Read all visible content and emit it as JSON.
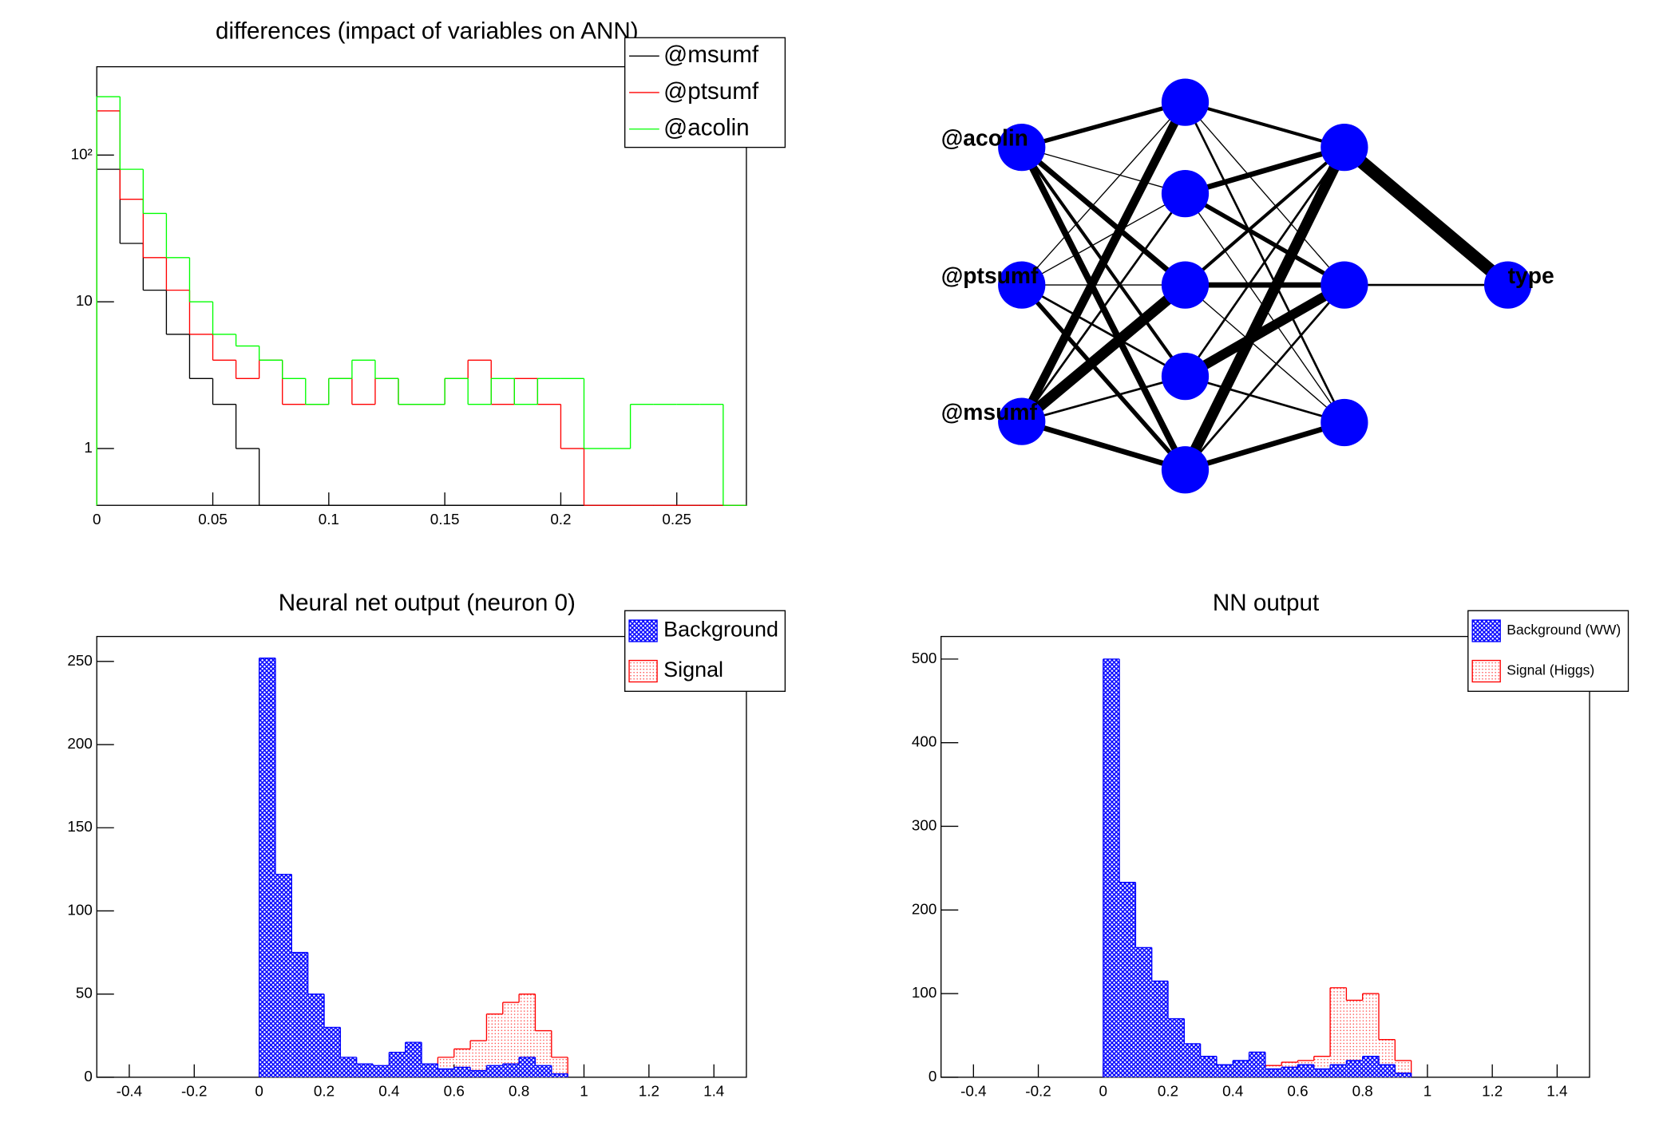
{
  "chart_data": [
    {
      "type": "histogram",
      "title": "differences (impact of variables on ANN)",
      "bins": [
        0,
        0.01,
        0.02,
        0.03,
        0.04,
        0.05,
        0.06,
        0.07,
        0.08,
        0.09,
        0.1,
        0.11,
        0.12,
        0.13,
        0.14,
        0.15,
        0.16,
        0.17,
        0.18,
        0.19,
        0.2,
        0.21,
        0.22,
        0.23,
        0.24,
        0.25,
        0.26,
        0.27,
        0.28
      ],
      "series": [
        {
          "name": "@msumf",
          "color": "#000000",
          "values": [
            80,
            25,
            12,
            6,
            3,
            2,
            1,
            0,
            0,
            0,
            0,
            0,
            0,
            0,
            0,
            0,
            0,
            0,
            0,
            0,
            0,
            0,
            0,
            0,
            0,
            0,
            0,
            0
          ]
        },
        {
          "name": "@ptsumf",
          "color": "#ff0000",
          "values": [
            200,
            50,
            20,
            12,
            6,
            4,
            3,
            4,
            2,
            2,
            3,
            2,
            3,
            2,
            2,
            3,
            4,
            2,
            3,
            2,
            1,
            0,
            0,
            0,
            0,
            0,
            0,
            0
          ]
        },
        {
          "name": "@acolin",
          "color": "#00ff00",
          "values": [
            250,
            80,
            40,
            20,
            10,
            6,
            5,
            4,
            3,
            2,
            3,
            4,
            3,
            2,
            2,
            3,
            2,
            3,
            2,
            3,
            3,
            1,
            1,
            2,
            2,
            2,
            2,
            0
          ]
        }
      ],
      "xlim": [
        0,
        0.28
      ],
      "xticks": [
        0,
        0.05,
        0.1,
        0.15,
        0.2,
        0.25
      ],
      "ylim": [
        0.41,
        400
      ],
      "yticks": [
        1,
        10,
        {
          "value": 100,
          "label": "10²"
        }
      ],
      "log_y": true,
      "legend": "top-right"
    },
    {
      "type": "histogram",
      "title": "Neural net output (neuron 0)",
      "bins": [
        0,
        0.05,
        0.1,
        0.15,
        0.2,
        0.25,
        0.3,
        0.35,
        0.4,
        0.45,
        0.5,
        0.55,
        0.6,
        0.65,
        0.7,
        0.75,
        0.8,
        0.85,
        0.9,
        0.95
      ],
      "series": [
        {
          "name": "Background",
          "color": "#0000ff",
          "fill": "crosshatch",
          "values": [
            252,
            122,
            75,
            50,
            30,
            12,
            8,
            7,
            15,
            21,
            8,
            5,
            6,
            4,
            7,
            8,
            12,
            7,
            2
          ]
        },
        {
          "name": "Signal",
          "color": "#ff0000",
          "fill": "dots",
          "values": [
            5,
            6,
            6,
            6,
            5,
            5,
            4,
            5,
            8,
            8,
            8,
            12,
            17,
            22,
            38,
            45,
            50,
            28,
            12
          ]
        }
      ],
      "xlim": [
        -0.5,
        1.5
      ],
      "xticks": [
        -0.4,
        -0.2,
        0,
        0.2,
        0.4,
        0.6,
        0.8,
        1,
        1.2,
        1.4
      ],
      "ylim": [
        0,
        265
      ],
      "yticks": [
        0,
        50,
        100,
        150,
        200,
        250
      ],
      "legend": "top-right"
    },
    {
      "type": "histogram",
      "title": "NN output",
      "bins": [
        0,
        0.05,
        0.1,
        0.15,
        0.2,
        0.25,
        0.3,
        0.35,
        0.4,
        0.45,
        0.5,
        0.55,
        0.6,
        0.65,
        0.7,
        0.75,
        0.8,
        0.85,
        0.9,
        0.95
      ],
      "series": [
        {
          "name": "Background (WW)",
          "color": "#0000ff",
          "fill": "crosshatch",
          "values": [
            500,
            233,
            155,
            115,
            70,
            40,
            25,
            15,
            20,
            30,
            10,
            12,
            15,
            10,
            15,
            20,
            25,
            15,
            5
          ]
        },
        {
          "name": "Signal (Higgs)",
          "color": "#ff0000",
          "fill": "dots",
          "values": [
            5,
            10,
            15,
            10,
            10,
            8,
            6,
            8,
            10,
            12,
            14,
            18,
            20,
            25,
            107,
            92,
            100,
            45,
            20
          ]
        }
      ],
      "xlim": [
        -0.5,
        1.5
      ],
      "xticks": [
        -0.4,
        -0.2,
        0,
        0.2,
        0.4,
        0.6,
        0.8,
        1,
        1.2,
        1.4
      ],
      "ylim": [
        0,
        527
      ],
      "yticks": [
        0,
        100,
        200,
        300,
        400,
        500
      ],
      "legend": "top-right"
    }
  ],
  "network": {
    "nodes": [
      "@acolin",
      "@ptsumf",
      "@msumf",
      "type"
    ]
  }
}
